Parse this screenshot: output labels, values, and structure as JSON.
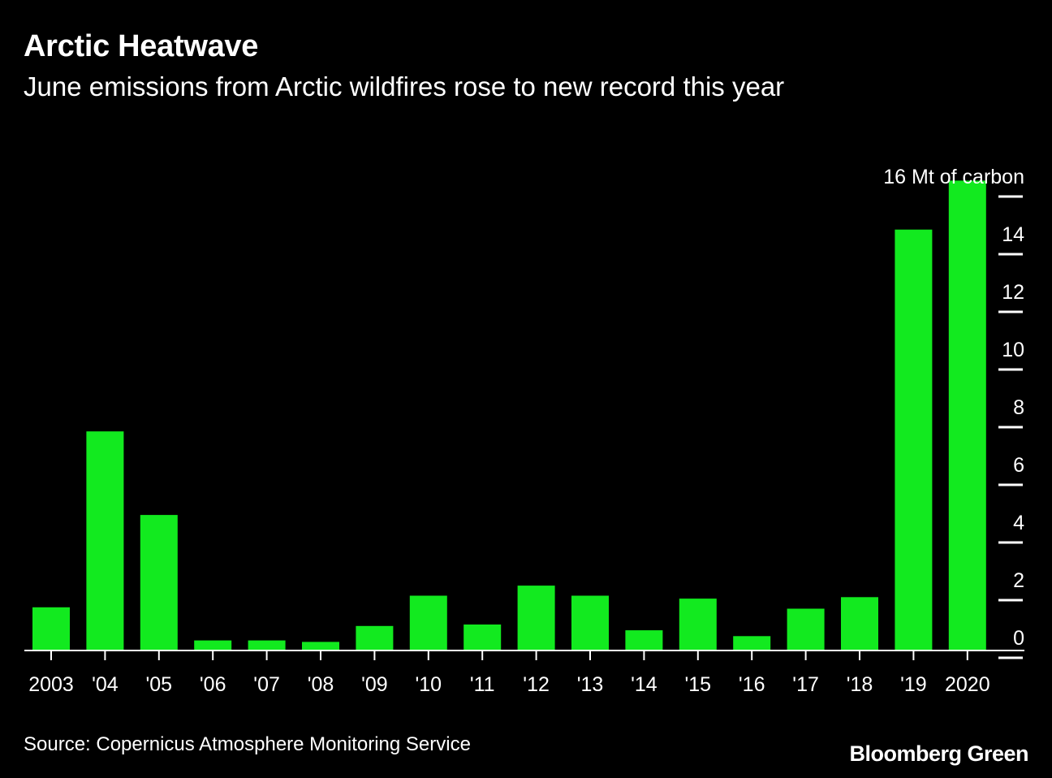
{
  "header": {
    "title": "Arctic Heatwave",
    "subtitle": "June emissions from Arctic wildfires rose to new record this year"
  },
  "footer": {
    "source": "Source: Copernicus Atmosphere Monitoring Service",
    "brand": "Bloomberg Green"
  },
  "colors": {
    "background": "#000000",
    "bar": "#12ea1f",
    "text": "#ffffff"
  },
  "chart_data": {
    "type": "bar",
    "categories": [
      "2003",
      "'04",
      "'05",
      "'06",
      "'07",
      "'08",
      "'09",
      "'10",
      "'11",
      "'12",
      "'13",
      "'14",
      "'15",
      "'16",
      "'17",
      "'18",
      "'19",
      "2020"
    ],
    "values": [
      1.5,
      7.6,
      4.7,
      0.35,
      0.35,
      0.3,
      0.85,
      1.9,
      0.9,
      2.25,
      1.9,
      0.7,
      1.8,
      0.5,
      1.45,
      1.85,
      14.6,
      16.3
    ],
    "ylim": [
      0,
      16
    ],
    "yticks": [
      "0",
      "2",
      "4",
      "6",
      "8",
      "10",
      "12",
      "14",
      "16 Mt of carbon"
    ],
    "y_axis_position": "right",
    "grid": false,
    "legend": "none"
  }
}
